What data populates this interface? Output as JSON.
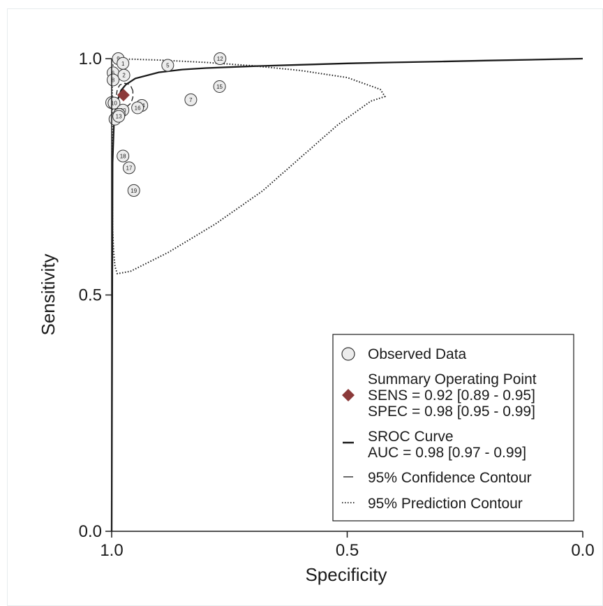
{
  "chart_data": {
    "type": "scatter",
    "xlabel": "Specificity",
    "ylabel": "Sensitivity",
    "xlim": [
      1.0,
      0.0
    ],
    "ylim": [
      0.0,
      1.0
    ],
    "x_ticks": [
      "1.0",
      "0.5",
      "0.0"
    ],
    "y_ticks": [
      "0.0",
      "0.5",
      "1.0"
    ],
    "grid": false,
    "legend_position": "bottom-right",
    "legend": [
      {
        "key": "observed",
        "text": [
          "Observed Data"
        ]
      },
      {
        "key": "summary",
        "text": [
          "Summary Operating Point",
          "SENS = 0.92 [0.89 - 0.95]",
          "SPEC = 0.98 [0.95 - 0.99]"
        ]
      },
      {
        "key": "sroc",
        "text": [
          "SROC Curve",
          "AUC = 0.98 [0.97 - 0.99]"
        ]
      },
      {
        "key": "confidence",
        "text": [
          "95% Confidence Contour"
        ]
      },
      {
        "key": "prediction",
        "text": [
          "95% Prediction Contour"
        ]
      }
    ],
    "studies": [
      {
        "label": "9",
        "spec": 0.986,
        "sens": 1.0
      },
      {
        "label": "12",
        "spec": 0.77,
        "sens": 1.0
      },
      {
        "label": "1",
        "spec": 0.976,
        "sens": 0.99
      },
      {
        "label": "5",
        "spec": 0.881,
        "sens": 0.986
      },
      {
        "label": "6",
        "spec": 0.997,
        "sens": 0.97
      },
      {
        "label": "2",
        "spec": 0.974,
        "sens": 0.965
      },
      {
        "label": "8",
        "spec": 0.997,
        "sens": 0.955
      },
      {
        "label": "15",
        "spec": 0.771,
        "sens": 0.941
      },
      {
        "label": "7",
        "spec": 0.832,
        "sens": 0.913
      },
      {
        "label": "3",
        "spec": 1.0,
        "sens": 0.907
      },
      {
        "label": "10",
        "spec": 0.995,
        "sens": 0.906
      },
      {
        "label": "14",
        "spec": 0.936,
        "sens": 0.901
      },
      {
        "label": "16",
        "spec": 0.945,
        "sens": 0.896
      },
      {
        "label": "20",
        "spec": 0.976,
        "sens": 0.891
      },
      {
        "label": "11",
        "spec": 0.984,
        "sens": 0.882
      },
      {
        "label": "4",
        "spec": 0.993,
        "sens": 0.872
      },
      {
        "label": "13",
        "spec": 0.985,
        "sens": 0.878
      },
      {
        "label": "18",
        "spec": 0.976,
        "sens": 0.794
      },
      {
        "label": "17",
        "spec": 0.963,
        "sens": 0.769
      },
      {
        "label": "19",
        "spec": 0.953,
        "sens": 0.721
      }
    ],
    "summary_point": {
      "spec": 0.975,
      "sens": 0.923,
      "color": "#8b3a3a"
    },
    "sroc_curve": [
      [
        1.0,
        0.0
      ],
      [
        0.998,
        0.78
      ],
      [
        0.995,
        0.87
      ],
      [
        0.99,
        0.905
      ],
      [
        0.98,
        0.933
      ],
      [
        0.97,
        0.945
      ],
      [
        0.95,
        0.958
      ],
      [
        0.9,
        0.971
      ],
      [
        0.85,
        0.977
      ],
      [
        0.8,
        0.98
      ],
      [
        0.7,
        0.984
      ],
      [
        0.6,
        0.987
      ],
      [
        0.5,
        0.99
      ],
      [
        0.4,
        0.992
      ],
      [
        0.3,
        0.994
      ],
      [
        0.2,
        0.996
      ],
      [
        0.1,
        0.998
      ],
      [
        0.0,
        1.0
      ]
    ],
    "confidence_contour": [
      [
        0.955,
        0.932
      ],
      [
        0.959,
        0.941
      ],
      [
        0.966,
        0.947
      ],
      [
        0.975,
        0.948
      ],
      [
        0.983,
        0.944
      ],
      [
        0.988,
        0.935
      ],
      [
        0.99,
        0.923
      ],
      [
        0.988,
        0.911
      ],
      [
        0.983,
        0.902
      ],
      [
        0.975,
        0.898
      ],
      [
        0.966,
        0.9
      ],
      [
        0.959,
        0.906
      ],
      [
        0.955,
        0.918
      ],
      [
        0.955,
        0.932
      ]
    ],
    "prediction_contour": [
      [
        0.998,
        0.64
      ],
      [
        0.996,
        0.595
      ],
      [
        0.993,
        0.56
      ],
      [
        0.988,
        0.545
      ],
      [
        0.96,
        0.55
      ],
      [
        0.88,
        0.59
      ],
      [
        0.78,
        0.65
      ],
      [
        0.68,
        0.72
      ],
      [
        0.6,
        0.79
      ],
      [
        0.52,
        0.86
      ],
      [
        0.45,
        0.91
      ],
      [
        0.42,
        0.92
      ],
      [
        0.43,
        0.935
      ],
      [
        0.5,
        0.96
      ],
      [
        0.6,
        0.975
      ],
      [
        0.7,
        0.985
      ],
      [
        0.8,
        0.992
      ],
      [
        0.9,
        0.997
      ],
      [
        0.96,
        0.999
      ],
      [
        0.99,
        0.998
      ],
      [
        0.998,
        0.985
      ],
      [
        0.999,
        0.95
      ],
      [
        0.999,
        0.88
      ],
      [
        0.999,
        0.78
      ],
      [
        0.998,
        0.64
      ]
    ]
  }
}
